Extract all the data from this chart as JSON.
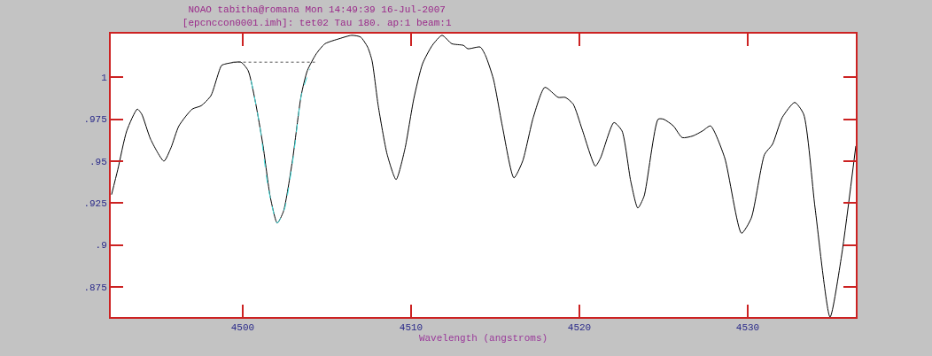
{
  "chart_data": {
    "type": "line",
    "title": "NOAO tabitha@romana Mon 14:49:39 16-Jul-2007",
    "subtitle": "[epcnccon0001.imh]: tet02 Tau 180. ap:1 beam:1",
    "xlabel": "Wavelength (angstroms)",
    "xlim": [
      4492.16,
      4536.42
    ],
    "xticks": [
      4500,
      4510,
      4520,
      4530
    ],
    "ylim": [
      0.857,
      1.026
    ],
    "yticks": [
      {
        "value": 0.875,
        "label": ".875"
      },
      {
        "value": 0.9,
        "label": ".9"
      },
      {
        "value": 0.925,
        "label": ".925"
      },
      {
        "value": 0.95,
        "label": ".95"
      },
      {
        "value": 0.975,
        "label": ".975"
      },
      {
        "value": 1,
        "label": "1"
      }
    ],
    "marker": "none",
    "series": [
      {
        "color": "#000000",
        "line_style": "solid",
        "x": [
          4492.21,
          4492.58,
          4493.11,
          4493.74,
          4494.0,
          4494.53,
          4495.32,
          4495.74,
          4496.21,
          4497.0,
          4497.53,
          4498.11,
          4498.74,
          4499.0,
          4499.89,
          4500.32,
          4500.74,
          4501.21,
          4501.63,
          4502.05,
          4502.42,
          4502.95,
          4503.47,
          4503.84,
          4504.37,
          4504.89,
          4505.74,
          4506.47,
          4507.0,
          4507.42,
          4507.68,
          4508.05,
          4508.58,
          4509.11,
          4509.63,
          4510.16,
          4510.68,
          4511.26,
          4511.84,
          4512.42,
          4513.11,
          4513.37,
          4514.11,
          4514.42,
          4514.89,
          4515.42,
          4516.11,
          4516.63,
          4517.26,
          4517.95,
          4518.74,
          4519.16,
          4519.63,
          4520.16,
          4520.95,
          4521.26,
          4522.05,
          4522.53,
          4523.05,
          4523.47,
          4523.84,
          4524.68,
          4525.0,
          4525.58,
          4526.11,
          4526.74,
          4527.32,
          4527.79,
          4528.63,
          4529.63,
          4530.21,
          4531.0,
          4531.47,
          4532.05,
          4532.79,
          4533.32,
          4534.0,
          4534.89,
          4535.58,
          4536.42
        ],
        "values": [
          0.93,
          0.945,
          0.968,
          0.981,
          0.978,
          0.963,
          0.95,
          0.958,
          0.971,
          0.981,
          0.983,
          0.989,
          1.007,
          1.008,
          1.009,
          1.004,
          0.986,
          0.959,
          0.929,
          0.913,
          0.92,
          0.95,
          0.989,
          1.004,
          1.014,
          1.02,
          1.023,
          1.025,
          1.024,
          1.018,
          1.01,
          0.983,
          0.954,
          0.939,
          0.957,
          0.987,
          1.008,
          1.019,
          1.025,
          1.02,
          1.019,
          1.017,
          1.018,
          1.013,
          0.999,
          0.971,
          0.94,
          0.95,
          0.976,
          0.994,
          0.988,
          0.988,
          0.984,
          0.969,
          0.947,
          0.952,
          0.973,
          0.968,
          0.938,
          0.922,
          0.929,
          0.975,
          0.975,
          0.971,
          0.964,
          0.965,
          0.968,
          0.971,
          0.952,
          0.907,
          0.916,
          0.954,
          0.96,
          0.976,
          0.985,
          0.978,
          0.922,
          0.857,
          0.894,
          0.959
        ]
      },
      {
        "color": "#40e0e0",
        "line_style": "dashed",
        "x": [
          4500.5,
          4501.0,
          4501.5,
          4502.05,
          4502.5,
          4503.0,
          4503.5,
          4504.0
        ],
        "values": [
          0.998,
          0.972,
          0.935,
          0.913,
          0.922,
          0.952,
          0.99,
          1.005
        ]
      },
      {
        "color": "#555555",
        "line_style": "dotted",
        "x": [
          4499.4,
          4504.4
        ],
        "values": [
          1.009,
          1.009
        ]
      }
    ]
  }
}
